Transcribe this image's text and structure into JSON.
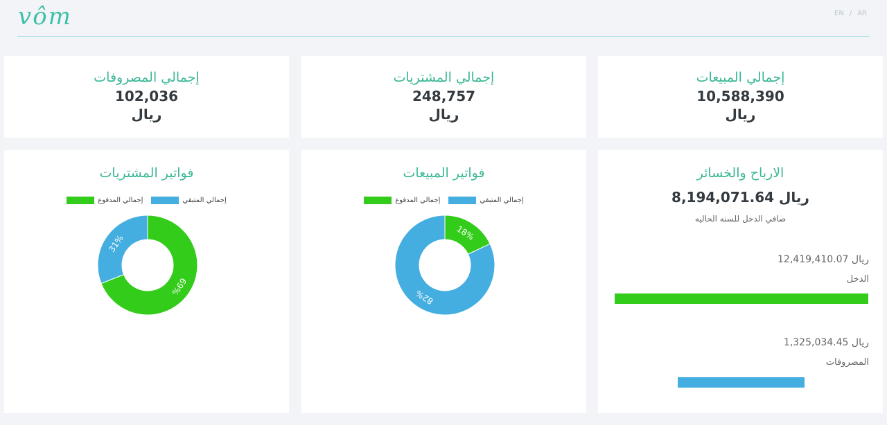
{
  "header": {
    "logo": "vôm",
    "lang_en": "EN",
    "lang_sep": "/",
    "lang_ar": "AR"
  },
  "stats": [
    {
      "title": "إجمالي المصروفات",
      "value": "102,036",
      "unit": "ريال"
    },
    {
      "title": "إجمالي المشتريات",
      "value": "248,757",
      "unit": "ريال"
    },
    {
      "title": "إجمالي المبيعات",
      "value": "10,588,390",
      "unit": "ريال"
    }
  ],
  "profit": {
    "title": "الارباح والخسائر",
    "net": "8,194,071.64 ريال",
    "net_label": "صافي الدخل للسنه الحاليه",
    "income_value": "12,419,410.07 ريال",
    "income_label": "الدخل",
    "expenses_value": "1,325,034.45 ريال",
    "expenses_label": "المصروفات"
  },
  "chart_data": [
    {
      "type": "pie",
      "title": "فواتير المشتريات",
      "categories": [
        "إجمالي المدفوع",
        "إجمالي المتبقي"
      ],
      "values": [
        69,
        31
      ],
      "value_labels": [
        "69%",
        "31%"
      ],
      "colors": [
        "#33cc1a",
        "#45aee0"
      ]
    },
    {
      "type": "pie",
      "title": "فواتير المبيعات",
      "categories": [
        "إجمالي المدفوع",
        "إجمالي المتبقي"
      ],
      "values": [
        18,
        82
      ],
      "value_labels": [
        "18%",
        "82%"
      ],
      "colors": [
        "#33cc1a",
        "#45aee0"
      ]
    }
  ]
}
